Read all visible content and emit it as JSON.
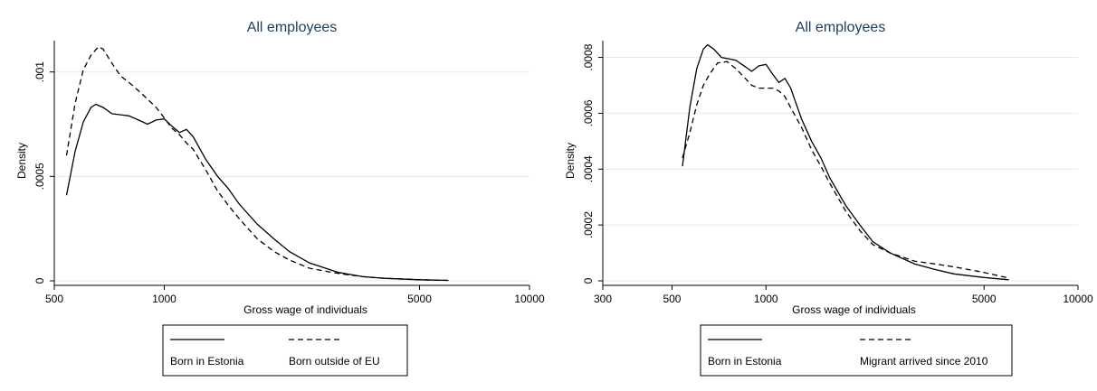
{
  "chart_data": [
    {
      "type": "line",
      "title": "All employees",
      "xlabel": "Gross wage of individuals",
      "ylabel": "Density",
      "xscale": "log",
      "xlim": [
        500,
        10000
      ],
      "ylim": [
        0,
        0.00115
      ],
      "xticks": [
        500,
        1000,
        5000,
        10000
      ],
      "xtick_labels": [
        "500",
        "1000",
        "5000",
        "10000"
      ],
      "yticks": [
        0,
        0.0005,
        0.001
      ],
      "ytick_labels": [
        "0",
        ".0005",
        ".001"
      ],
      "grid": true,
      "legend_position": "bottom",
      "series": [
        {
          "name": "Born in Estonia",
          "style": "solid",
          "x": [
            540,
            570,
            600,
            630,
            650,
            680,
            720,
            760,
            800,
            850,
            900,
            950,
            1000,
            1050,
            1100,
            1150,
            1200,
            1300,
            1400,
            1500,
            1600,
            1800,
            2000,
            2200,
            2500,
            3000,
            3500,
            4000,
            5000,
            6000
          ],
          "y": [
            0.00041,
            0.00062,
            0.00076,
            0.00083,
            0.000845,
            0.00083,
            0.0008,
            0.000795,
            0.00079,
            0.00077,
            0.00075,
            0.00077,
            0.000775,
            0.00074,
            0.00071,
            0.000725,
            0.00069,
            0.00058,
            0.0005,
            0.00044,
            0.00037,
            0.00027,
            0.0002,
            0.00014,
            8.5e-05,
            4e-05,
            2e-05,
            1.2e-05,
            5e-06,
            2e-06
          ]
        },
        {
          "name": "Born outside of EU",
          "style": "dashed",
          "x": [
            540,
            570,
            600,
            630,
            660,
            680,
            720,
            760,
            800,
            850,
            900,
            950,
            1000,
            1050,
            1100,
            1150,
            1200,
            1300,
            1400,
            1500,
            1600,
            1800,
            2000,
            2200,
            2500,
            3000,
            3500,
            4000,
            5000,
            6000
          ],
          "y": [
            0.0006,
            0.00085,
            0.00101,
            0.00108,
            0.00112,
            0.00111,
            0.00104,
            0.00098,
            0.00095,
            0.00091,
            0.00087,
            0.00083,
            0.00078,
            0.00073,
            0.0007,
            0.00066,
            0.00063,
            0.00053,
            0.00043,
            0.00036,
            0.0003,
            0.0002,
            0.00014,
            0.0001,
            6e-05,
            3.5e-05,
            2e-05,
            1.2e-05,
            5e-06,
            2e-06
          ]
        }
      ]
    },
    {
      "type": "line",
      "title": "All employees",
      "xlabel": "Gross wage of individuals",
      "ylabel": "Density",
      "xscale": "log",
      "xlim": [
        300,
        10000
      ],
      "ylim": [
        0,
        0.00086
      ],
      "xticks": [
        300,
        500,
        1000,
        5000,
        10000
      ],
      "xtick_labels": [
        "300",
        "500",
        "1000",
        "5000",
        "10000"
      ],
      "yticks": [
        0,
        0.0002,
        0.0004,
        0.0006,
        0.0008
      ],
      "ytick_labels": [
        "0",
        ".0002",
        ".0004",
        ".0006",
        ".0008"
      ],
      "grid": true,
      "legend_position": "bottom",
      "series": [
        {
          "name": "Born in Estonia",
          "style": "solid",
          "x": [
            540,
            570,
            600,
            630,
            650,
            680,
            720,
            760,
            800,
            850,
            900,
            950,
            1000,
            1050,
            1100,
            1150,
            1200,
            1300,
            1400,
            1500,
            1600,
            1800,
            2000,
            2200,
            2500,
            3000,
            3500,
            4000,
            5000,
            6000
          ],
          "y": [
            0.00041,
            0.00062,
            0.00076,
            0.00083,
            0.000845,
            0.00083,
            0.0008,
            0.000795,
            0.00079,
            0.00077,
            0.00075,
            0.00077,
            0.000775,
            0.00074,
            0.00071,
            0.000725,
            0.00069,
            0.00058,
            0.0005,
            0.00044,
            0.00037,
            0.00027,
            0.0002,
            0.00014,
            0.0001,
            6e-05,
            4e-05,
            2.5e-05,
            1.2e-05,
            4e-06
          ]
        },
        {
          "name": "Migrant arrived since 2010",
          "style": "dashed",
          "x": [
            540,
            570,
            600,
            630,
            660,
            700,
            750,
            800,
            850,
            900,
            950,
            1000,
            1050,
            1100,
            1150,
            1200,
            1300,
            1400,
            1500,
            1600,
            1800,
            2000,
            2200,
            2500,
            3000,
            3500,
            4000,
            5000,
            6000
          ],
          "y": [
            0.00044,
            0.00053,
            0.00063,
            0.0007,
            0.00074,
            0.00078,
            0.000785,
            0.00076,
            0.00073,
            0.0007,
            0.00069,
            0.00069,
            0.00069,
            0.00068,
            0.00066,
            0.00062,
            0.00055,
            0.00047,
            0.00041,
            0.00035,
            0.00025,
            0.00018,
            0.00013,
            0.0001,
            7e-05,
            6e-05,
            5e-05,
            3e-05,
            1e-05
          ]
        }
      ]
    }
  ]
}
